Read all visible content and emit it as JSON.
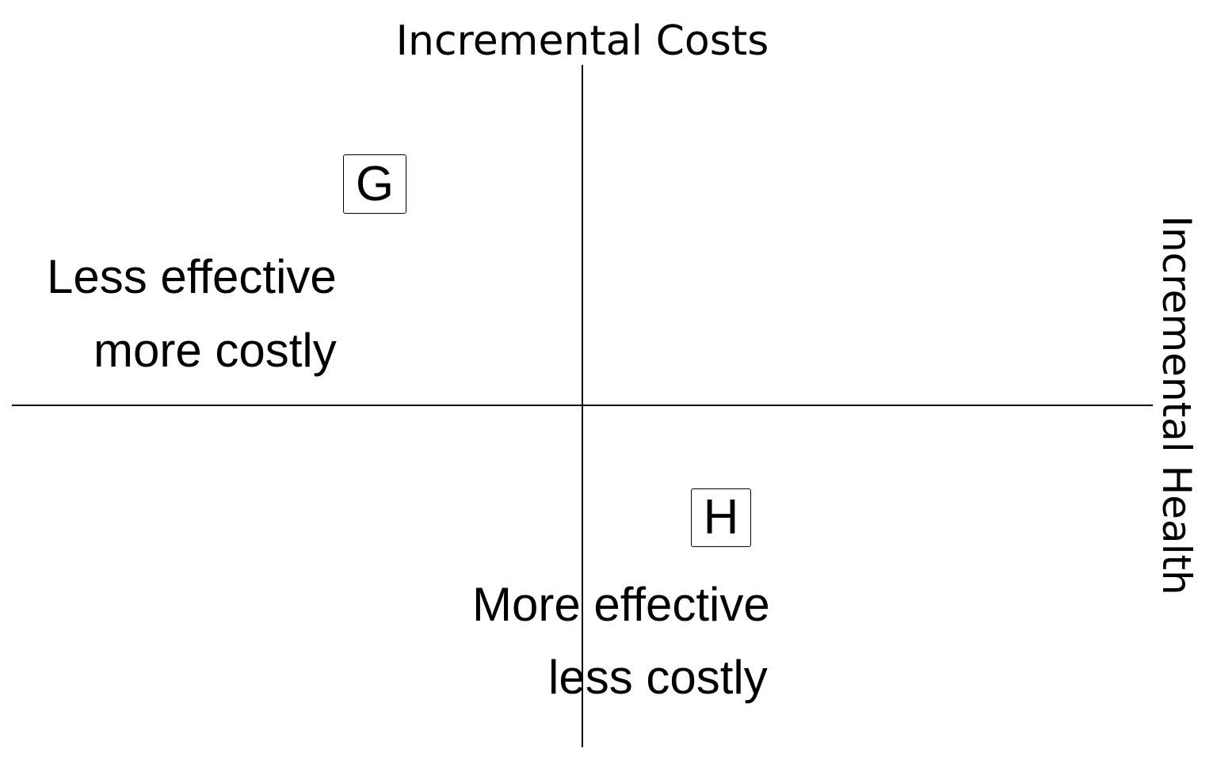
{
  "axes": {
    "y_title": "Incremental Costs",
    "x_title": "Incremental Health"
  },
  "points": [
    {
      "label": "G",
      "quadrant": "north-west"
    },
    {
      "label": "H",
      "quadrant": "south-east"
    }
  ],
  "quadrant_labels": {
    "north_west": [
      "Less effective",
      "more costly"
    ],
    "south_east": [
      "More effective",
      "less costly"
    ]
  }
}
